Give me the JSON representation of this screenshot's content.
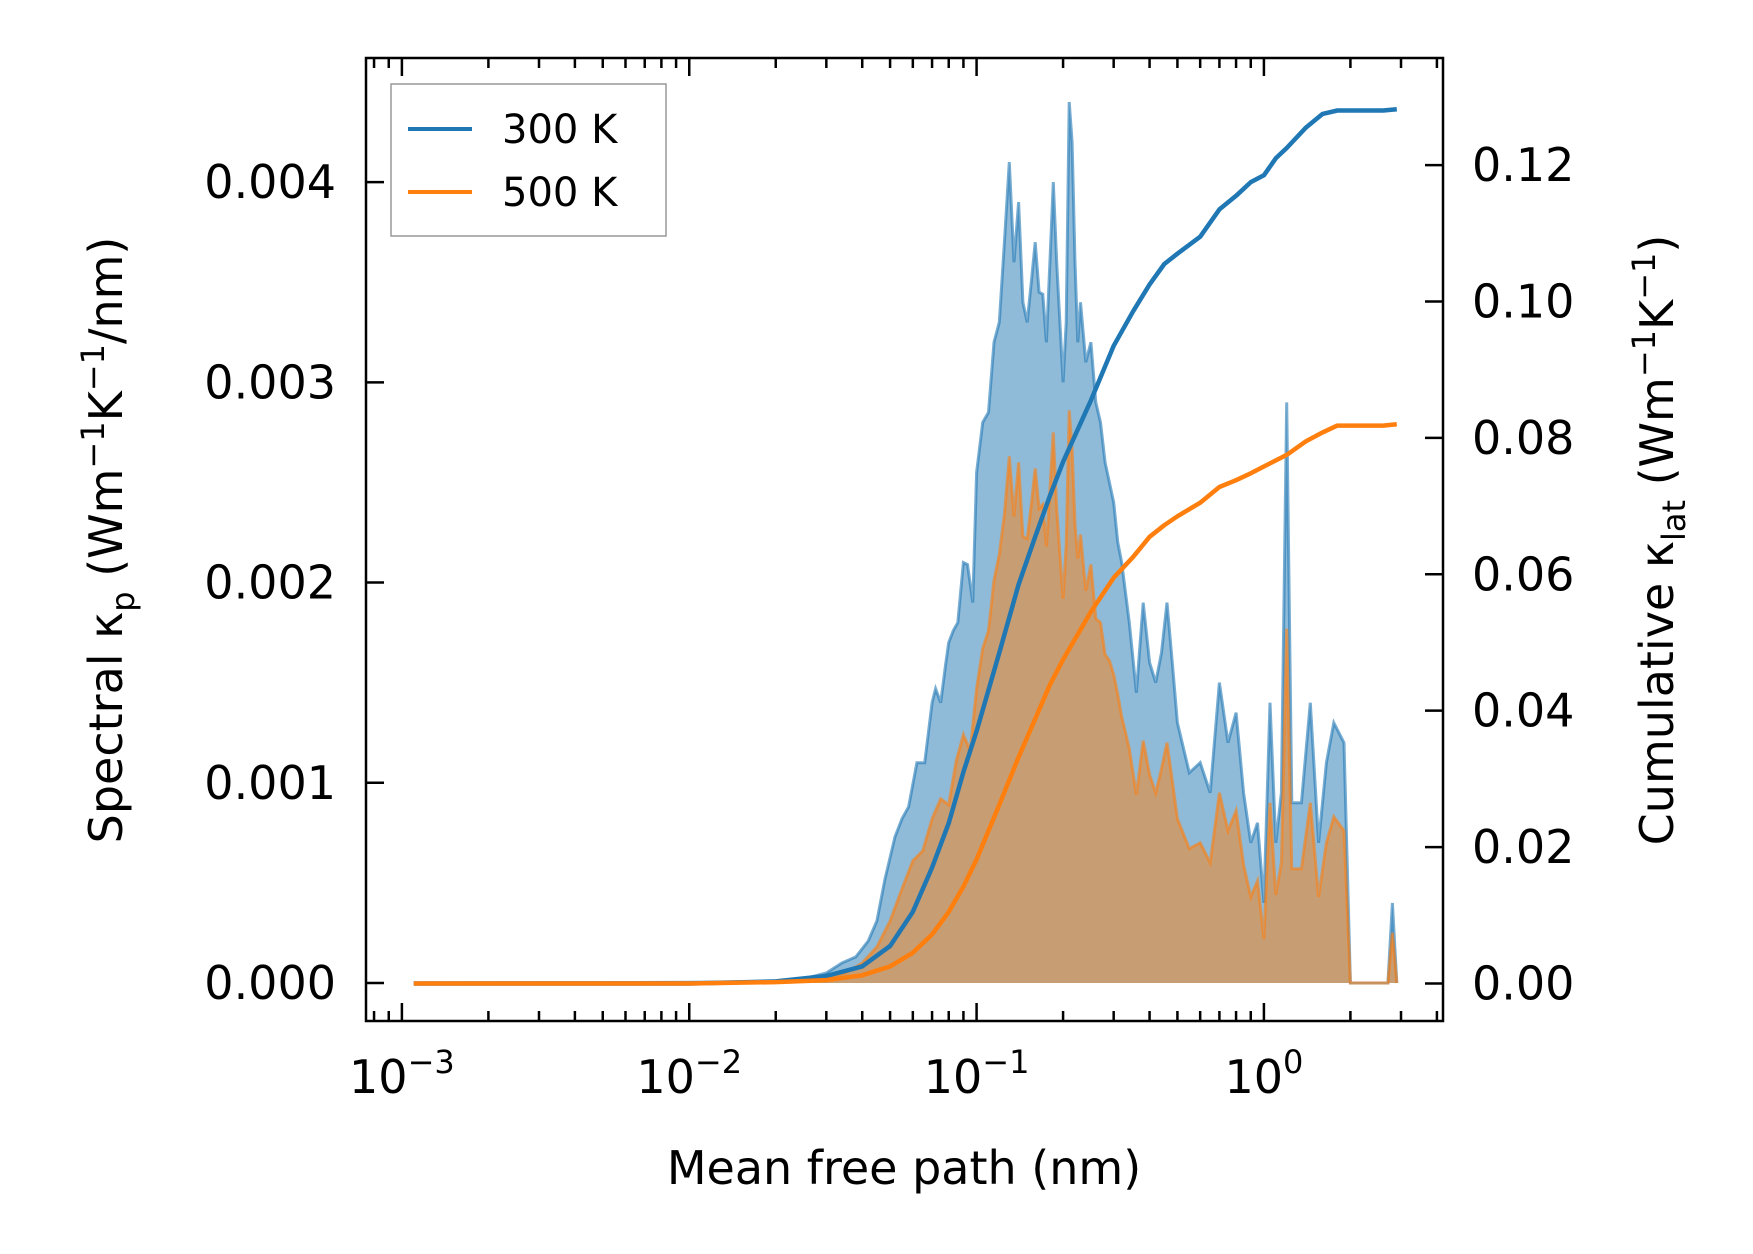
{
  "chart_data": {
    "type": "area",
    "xlabel": "Mean free path (nm)",
    "ylabel_left": {
      "main": "Spectral κ",
      "sub": "p",
      "unit_open": " (Wm",
      "sup1": "−1",
      "mid": "K",
      "sup2": "−1",
      "tail": "/nm)"
    },
    "ylabel_right": {
      "main": "Cumulative κ",
      "sub": "lat",
      "unit_open": " (Wm",
      "sup1": "−1",
      "mid": "K",
      "sup2": "−1",
      "tail": ")"
    },
    "x_scale": "log",
    "xlim": [
      0.00075,
      4.2
    ],
    "x_ticks": [
      {
        "value": 0.001,
        "base": "10",
        "exp": "−3"
      },
      {
        "value": 0.01,
        "base": "10",
        "exp": "−2"
      },
      {
        "value": 0.1,
        "base": "10",
        "exp": "−1"
      },
      {
        "value": 1,
        "base": "10",
        "exp": "0"
      }
    ],
    "ylim_left": [
      -0.00019,
      0.00462
    ],
    "yticks_left": [
      "0.000",
      "0.001",
      "0.002",
      "0.003",
      "0.004"
    ],
    "ylim_right": [
      -0.0055,
      0.1357
    ],
    "yticks_right": [
      "0.00",
      "0.02",
      "0.04",
      "0.06",
      "0.08",
      "0.10",
      "0.12"
    ],
    "legend": {
      "position": "upper-left",
      "entries": [
        "300 K",
        "500 K"
      ]
    },
    "series": [
      {
        "name": "300 K",
        "color": "#1f77b4",
        "fill_color": "#1f77b4",
        "spectral": [
          [
            0.0011,
            0
          ],
          [
            0.005,
            2e-06
          ],
          [
            0.01,
            4e-06
          ],
          [
            0.015,
            6e-06
          ],
          [
            0.02,
            1e-05
          ],
          [
            0.025,
            2e-05
          ],
          [
            0.03,
            5e-05
          ],
          [
            0.034,
            0.0001
          ],
          [
            0.038,
            0.00013
          ],
          [
            0.042,
            0.00021
          ],
          [
            0.045,
            0.00031
          ],
          [
            0.048,
            0.00052
          ],
          [
            0.052,
            0.00073
          ],
          [
            0.055,
            0.00082
          ],
          [
            0.058,
            0.00088
          ],
          [
            0.062,
            0.0011
          ],
          [
            0.066,
            0.0011
          ],
          [
            0.07,
            0.0014
          ],
          [
            0.072,
            0.00147
          ],
          [
            0.075,
            0.0014
          ],
          [
            0.078,
            0.00159
          ],
          [
            0.08,
            0.0017
          ],
          [
            0.083,
            0.00176
          ],
          [
            0.086,
            0.0018
          ],
          [
            0.09,
            0.0021
          ],
          [
            0.093,
            0.00209
          ],
          [
            0.097,
            0.0019
          ],
          [
            0.1,
            0.00255
          ],
          [
            0.105,
            0.0028
          ],
          [
            0.11,
            0.00285
          ],
          [
            0.115,
            0.0032
          ],
          [
            0.12,
            0.0033
          ],
          [
            0.125,
            0.0037
          ],
          [
            0.13,
            0.0041
          ],
          [
            0.135,
            0.0036
          ],
          [
            0.14,
            0.0039
          ],
          [
            0.145,
            0.0034
          ],
          [
            0.15,
            0.0033
          ],
          [
            0.155,
            0.0035
          ],
          [
            0.16,
            0.0037
          ],
          [
            0.165,
            0.00345
          ],
          [
            0.17,
            0.00344
          ],
          [
            0.175,
            0.0032
          ],
          [
            0.18,
            0.0036
          ],
          [
            0.185,
            0.004
          ],
          [
            0.19,
            0.0036
          ],
          [
            0.195,
            0.0033
          ],
          [
            0.2,
            0.003
          ],
          [
            0.205,
            0.0033
          ],
          [
            0.21,
            0.0044
          ],
          [
            0.215,
            0.0042
          ],
          [
            0.22,
            0.0036
          ],
          [
            0.225,
            0.0032
          ],
          [
            0.23,
            0.0034
          ],
          [
            0.24,
            0.0031
          ],
          [
            0.25,
            0.0032
          ],
          [
            0.26,
            0.0029
          ],
          [
            0.27,
            0.0028
          ],
          [
            0.28,
            0.0026
          ],
          [
            0.29,
            0.0025
          ],
          [
            0.3,
            0.0024
          ],
          [
            0.31,
            0.0022
          ],
          [
            0.32,
            0.0021
          ],
          [
            0.34,
            0.0018
          ],
          [
            0.36,
            0.00145
          ],
          [
            0.38,
            0.0019
          ],
          [
            0.4,
            0.0016
          ],
          [
            0.42,
            0.0015
          ],
          [
            0.44,
            0.00165
          ],
          [
            0.46,
            0.0019
          ],
          [
            0.48,
            0.0016
          ],
          [
            0.5,
            0.0013
          ],
          [
            0.55,
            0.00105
          ],
          [
            0.6,
            0.0011
          ],
          [
            0.65,
            0.00095
          ],
          [
            0.7,
            0.0015
          ],
          [
            0.75,
            0.0012
          ],
          [
            0.8,
            0.00135
          ],
          [
            0.85,
            0.00095
          ],
          [
            0.9,
            0.0007
          ],
          [
            0.95,
            0.0008
          ],
          [
            1.0,
            0.0004
          ],
          [
            1.05,
            0.0014
          ],
          [
            1.1,
            0.0007
          ],
          [
            1.15,
            0.00095
          ],
          [
            1.2,
            0.0029
          ],
          [
            1.25,
            0.0009
          ],
          [
            1.35,
            0.0009
          ],
          [
            1.45,
            0.0014
          ],
          [
            1.55,
            0.0007
          ],
          [
            1.65,
            0.0011
          ],
          [
            1.75,
            0.0013
          ],
          [
            1.9,
            0.0012
          ],
          [
            2.0,
            0
          ],
          [
            2.7,
            0
          ],
          [
            2.8,
            0.0004
          ],
          [
            2.9,
            0
          ]
        ],
        "cumulative": [
          [
            0.0011,
            0
          ],
          [
            0.01,
            0
          ],
          [
            0.02,
            0.0003
          ],
          [
            0.03,
            0.0011
          ],
          [
            0.04,
            0.0025
          ],
          [
            0.05,
            0.0055
          ],
          [
            0.06,
            0.0105
          ],
          [
            0.07,
            0.017
          ],
          [
            0.08,
            0.0235
          ],
          [
            0.09,
            0.031
          ],
          [
            0.1,
            0.037
          ],
          [
            0.12,
            0.0485
          ],
          [
            0.14,
            0.0585
          ],
          [
            0.16,
            0.0655
          ],
          [
            0.18,
            0.0715
          ],
          [
            0.2,
            0.0765
          ],
          [
            0.25,
            0.0855
          ],
          [
            0.3,
            0.0935
          ],
          [
            0.35,
            0.0985
          ],
          [
            0.4,
            0.1025
          ],
          [
            0.45,
            0.1055
          ],
          [
            0.5,
            0.107
          ],
          [
            0.6,
            0.1095
          ],
          [
            0.7,
            0.1135
          ],
          [
            0.8,
            0.1155
          ],
          [
            0.9,
            0.1175
          ],
          [
            1.0,
            0.1185
          ],
          [
            1.1,
            0.121
          ],
          [
            1.2,
            0.1225
          ],
          [
            1.4,
            0.1255
          ],
          [
            1.6,
            0.1275
          ],
          [
            1.8,
            0.128
          ],
          [
            2.6,
            0.128
          ],
          [
            2.9,
            0.1282
          ]
        ]
      },
      {
        "name": "500 K",
        "color": "#ff7f0e",
        "fill_color": "#ff7f0e",
        "spectral": [
          [
            0.0011,
            0
          ],
          [
            0.005,
            1e-06
          ],
          [
            0.01,
            2e-06
          ],
          [
            0.02,
            5e-06
          ],
          [
            0.025,
            1e-05
          ],
          [
            0.03,
            3e-05
          ],
          [
            0.035,
            5e-05
          ],
          [
            0.04,
            0.0001
          ],
          [
            0.045,
            0.00018
          ],
          [
            0.05,
            0.00031
          ],
          [
            0.055,
            0.00047
          ],
          [
            0.06,
            0.00061
          ],
          [
            0.065,
            0.00066
          ],
          [
            0.07,
            0.00082
          ],
          [
            0.075,
            0.00092
          ],
          [
            0.08,
            0.00089
          ],
          [
            0.085,
            0.00111
          ],
          [
            0.09,
            0.00124
          ],
          [
            0.095,
            0.00116
          ],
          [
            0.1,
            0.00147
          ],
          [
            0.105,
            0.00167
          ],
          [
            0.11,
            0.00176
          ],
          [
            0.115,
            0.00201
          ],
          [
            0.12,
            0.00214
          ],
          [
            0.125,
            0.00234
          ],
          [
            0.13,
            0.00263
          ],
          [
            0.135,
            0.00233
          ],
          [
            0.14,
            0.0026
          ],
          [
            0.145,
            0.00223
          ],
          [
            0.15,
            0.00222
          ],
          [
            0.155,
            0.00239
          ],
          [
            0.16,
            0.00257
          ],
          [
            0.165,
            0.00237
          ],
          [
            0.17,
            0.00239
          ],
          [
            0.175,
            0.00218
          ],
          [
            0.18,
            0.00246
          ],
          [
            0.185,
            0.00275
          ],
          [
            0.19,
            0.00237
          ],
          [
            0.195,
            0.00214
          ],
          [
            0.2,
            0.00192
          ],
          [
            0.205,
            0.00219
          ],
          [
            0.21,
            0.00286
          ],
          [
            0.215,
            0.00267
          ],
          [
            0.22,
            0.00229
          ],
          [
            0.225,
            0.00212
          ],
          [
            0.23,
            0.00224
          ],
          [
            0.24,
            0.00196
          ],
          [
            0.25,
            0.00209
          ],
          [
            0.26,
            0.00182
          ],
          [
            0.27,
            0.0018
          ],
          [
            0.28,
            0.00164
          ],
          [
            0.29,
            0.00161
          ],
          [
            0.3,
            0.00154
          ],
          [
            0.31,
            0.00144
          ],
          [
            0.32,
            0.00133
          ],
          [
            0.34,
            0.00117
          ],
          [
            0.36,
            0.00094
          ],
          [
            0.38,
            0.00121
          ],
          [
            0.4,
            0.00104
          ],
          [
            0.42,
            0.00095
          ],
          [
            0.44,
            0.00107
          ],
          [
            0.46,
            0.0012
          ],
          [
            0.48,
            0.00101
          ],
          [
            0.5,
            0.00082
          ],
          [
            0.55,
            0.00067
          ],
          [
            0.6,
            0.0007
          ],
          [
            0.65,
            0.0006
          ],
          [
            0.7,
            0.00095
          ],
          [
            0.75,
            0.00076
          ],
          [
            0.8,
            0.00086
          ],
          [
            0.85,
            0.00059
          ],
          [
            0.9,
            0.00043
          ],
          [
            0.95,
            0.00051
          ],
          [
            1.0,
            0.00022
          ],
          [
            1.05,
            0.0009
          ],
          [
            1.1,
            0.00044
          ],
          [
            1.15,
            0.0006
          ],
          [
            1.2,
            0.00177
          ],
          [
            1.25,
            0.00057
          ],
          [
            1.35,
            0.00057
          ],
          [
            1.45,
            0.0009
          ],
          [
            1.55,
            0.00043
          ],
          [
            1.65,
            0.0007
          ],
          [
            1.75,
            0.00083
          ],
          [
            1.9,
            0.00076
          ],
          [
            2.0,
            0
          ],
          [
            2.7,
            0
          ],
          [
            2.8,
            0.00025
          ],
          [
            2.9,
            0
          ]
        ],
        "cumulative": [
          [
            0.0011,
            0
          ],
          [
            0.01,
            0
          ],
          [
            0.02,
            0.0002
          ],
          [
            0.03,
            0.0005
          ],
          [
            0.04,
            0.0012
          ],
          [
            0.05,
            0.0025
          ],
          [
            0.06,
            0.0045
          ],
          [
            0.07,
            0.0072
          ],
          [
            0.08,
            0.0105
          ],
          [
            0.09,
            0.0142
          ],
          [
            0.1,
            0.0182
          ],
          [
            0.12,
            0.0262
          ],
          [
            0.14,
            0.0332
          ],
          [
            0.16,
            0.0388
          ],
          [
            0.18,
            0.0438
          ],
          [
            0.2,
            0.0475
          ],
          [
            0.25,
            0.0545
          ],
          [
            0.3,
            0.0595
          ],
          [
            0.35,
            0.0625
          ],
          [
            0.4,
            0.0655
          ],
          [
            0.45,
            0.0672
          ],
          [
            0.5,
            0.0685
          ],
          [
            0.6,
            0.0705
          ],
          [
            0.7,
            0.0728
          ],
          [
            0.8,
            0.0738
          ],
          [
            0.9,
            0.0748
          ],
          [
            1.0,
            0.0758
          ],
          [
            1.2,
            0.0775
          ],
          [
            1.4,
            0.0795
          ],
          [
            1.6,
            0.0808
          ],
          [
            1.8,
            0.0818
          ],
          [
            2.6,
            0.0818
          ],
          [
            2.9,
            0.082
          ]
        ]
      }
    ]
  }
}
